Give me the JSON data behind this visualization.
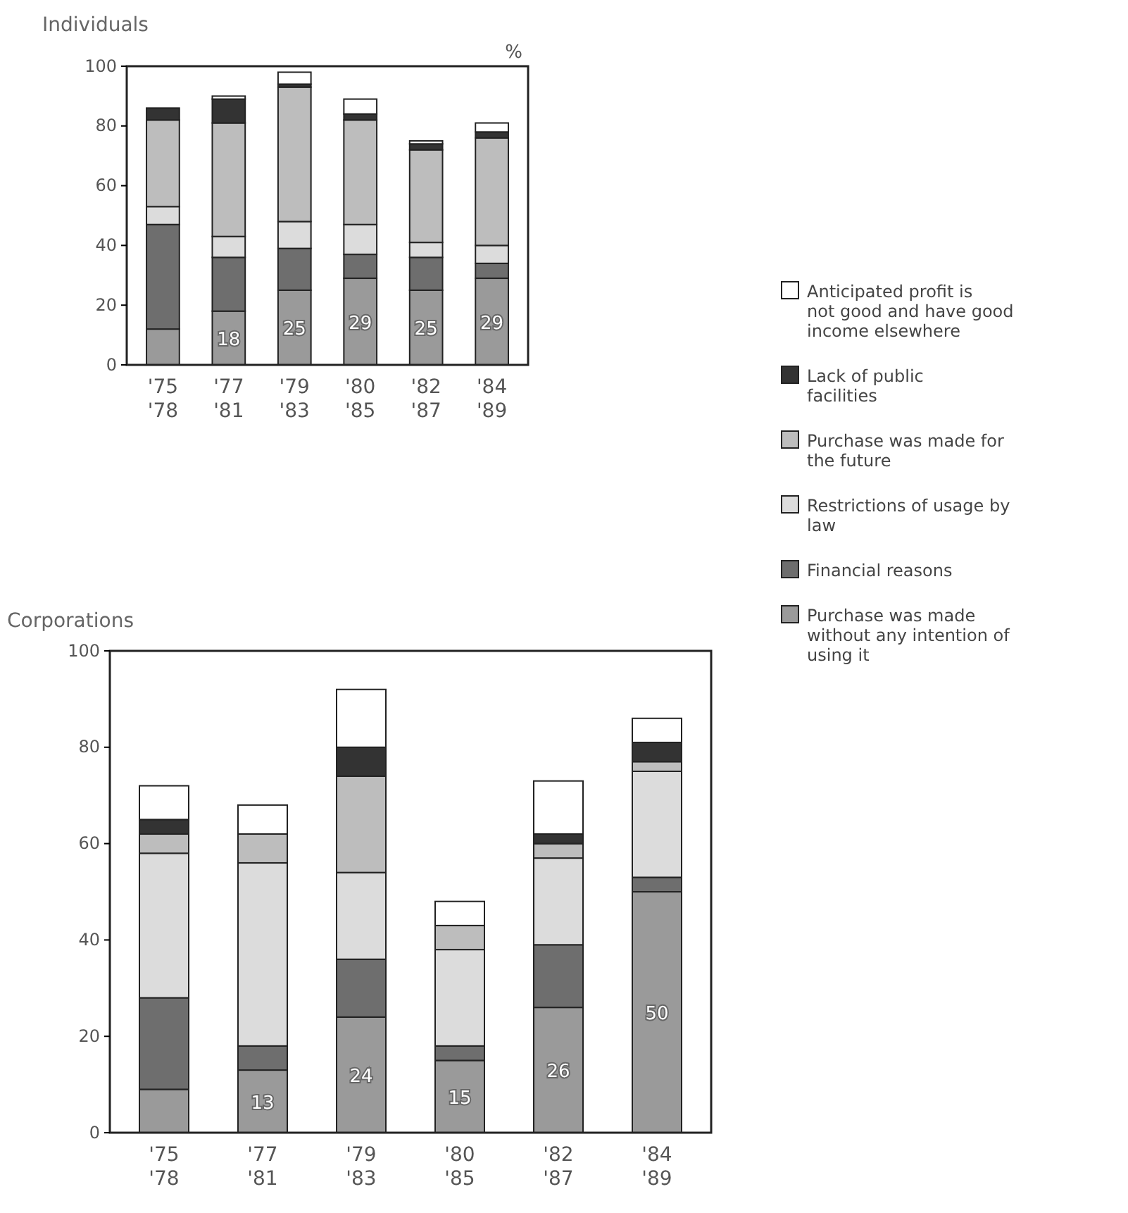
{
  "chart_data": [
    {
      "type": "bar",
      "title": "Individuals",
      "ylabel": "%",
      "stacked": true,
      "categories": [
        "'75\n'78",
        "'77\n'81",
        "'79\n'83",
        "'80\n'85",
        "'82\n'87",
        "'84\n'89"
      ],
      "ylim": [
        0,
        100
      ],
      "yticks": [
        0,
        20,
        40,
        60,
        80,
        100
      ],
      "legend": "right",
      "series": [
        {
          "name": "Purchase was made without any intention of using it",
          "color": "#9a9a9a",
          "values": [
            12,
            18,
            25,
            29,
            25,
            29
          ],
          "value_labels": [
            null,
            "18",
            "25",
            "29",
            "25",
            "29"
          ]
        },
        {
          "name": "Financial reasons",
          "color": "#6e6e6e",
          "values": [
            35,
            18,
            14,
            8,
            11,
            5
          ]
        },
        {
          "name": "Restrictions of usage by law",
          "color": "#dcdcdc",
          "values": [
            6,
            7,
            9,
            10,
            5,
            6
          ]
        },
        {
          "name": "Purchase was made for the future",
          "color": "#bdbdbd",
          "values": [
            29,
            38,
            45,
            35,
            31,
            36
          ]
        },
        {
          "name": "Lack of public facilities",
          "color": "#333333",
          "values": [
            4,
            8,
            1,
            2,
            2,
            2
          ]
        },
        {
          "name": "Anticipated profit is not good and have good income elsewhere",
          "color": "#ffffff",
          "values": [
            0,
            1,
            4,
            5,
            1,
            3
          ]
        }
      ]
    },
    {
      "type": "bar",
      "title": "Corporations",
      "stacked": true,
      "categories": [
        "'75\n'78",
        "'77\n'81",
        "'79\n'83",
        "'80\n'85",
        "'82\n'87",
        "'84\n'89"
      ],
      "ylim": [
        0,
        100
      ],
      "yticks": [
        0,
        20,
        40,
        60,
        80,
        100
      ],
      "series": [
        {
          "color": "#9a9a9a",
          "values": [
            9,
            13,
            24,
            15,
            26,
            50
          ],
          "value_labels": [
            null,
            "13",
            "24",
            "15",
            "26",
            "50"
          ]
        },
        {
          "color": "#6e6e6e",
          "values": [
            19,
            5,
            12,
            3,
            13,
            3
          ]
        },
        {
          "color": "#dcdcdc",
          "values": [
            30,
            38,
            18,
            20,
            18,
            22
          ]
        },
        {
          "color": "#bdbdbd",
          "values": [
            4,
            6,
            20,
            5,
            3,
            2
          ]
        },
        {
          "color": "#333333",
          "values": [
            3,
            0,
            6,
            0,
            2,
            4
          ]
        },
        {
          "color": "#ffffff",
          "values": [
            7,
            6,
            12,
            5,
            11,
            5
          ]
        }
      ]
    }
  ]
}
